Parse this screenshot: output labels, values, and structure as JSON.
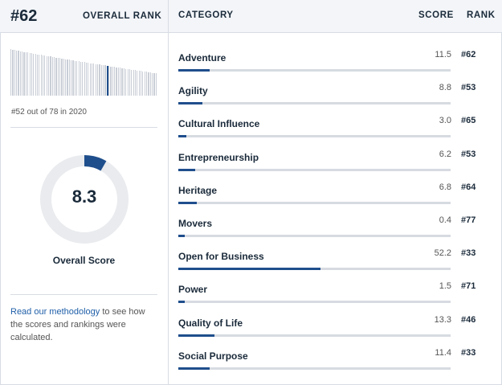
{
  "header": {
    "rank": "#62",
    "overall_rank_label": "OVERALL RANK",
    "category_col": "CATEGORY",
    "score_col": "SCORE",
    "rank_col": "RANK"
  },
  "left": {
    "rank_note": "#52 out of 78 in 2020",
    "overall_score_value": "8.3",
    "overall_score_fraction": 0.083,
    "overall_score_label": "Overall Score",
    "methodology_link": "Read our methodology",
    "methodology_text": " to see how the scores and rankings were calculated."
  },
  "colors": {
    "accent": "#1f4e8c",
    "track": "#d7dbe1",
    "ring": "#e9ebee"
  },
  "categories": [
    {
      "name": "Adventure",
      "score": "11.5",
      "rank": "#62",
      "fraction": 0.115
    },
    {
      "name": "Agility",
      "score": "8.8",
      "rank": "#53",
      "fraction": 0.088
    },
    {
      "name": "Cultural Influence",
      "score": "3.0",
      "rank": "#65",
      "fraction": 0.03
    },
    {
      "name": "Entrepreneurship",
      "score": "6.2",
      "rank": "#53",
      "fraction": 0.062
    },
    {
      "name": "Heritage",
      "score": "6.8",
      "rank": "#64",
      "fraction": 0.068
    },
    {
      "name": "Movers",
      "score": "0.4",
      "rank": "#77",
      "fraction": 0.004
    },
    {
      "name": "Open for Business",
      "score": "52.2",
      "rank": "#33",
      "fraction": 0.522
    },
    {
      "name": "Power",
      "score": "1.5",
      "rank": "#71",
      "fraction": 0.015
    },
    {
      "name": "Quality of Life",
      "score": "13.3",
      "rank": "#46",
      "fraction": 0.133
    },
    {
      "name": "Social Purpose",
      "score": "11.4",
      "rank": "#33",
      "fraction": 0.114
    }
  ]
}
